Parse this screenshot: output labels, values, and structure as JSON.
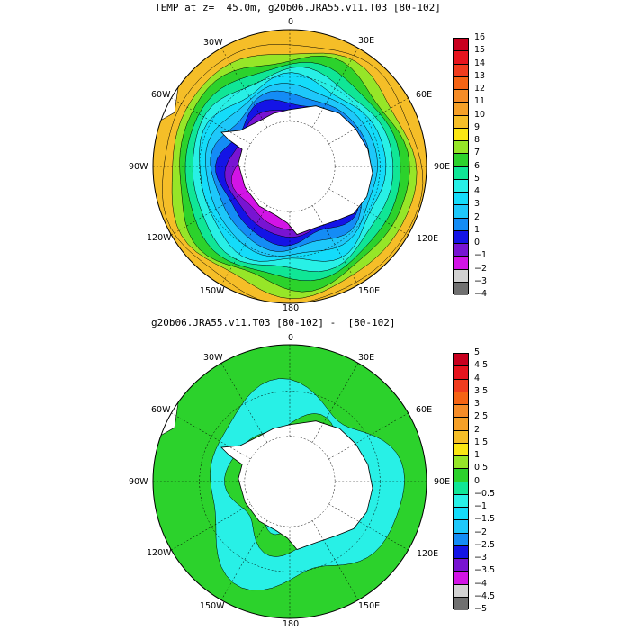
{
  "panels": [
    {
      "title": "TEMP at z=  45.0m, g20b06.JRA55.v11.T03 [80-102]",
      "lon_labels": [
        "0",
        "30E",
        "60E",
        "90E",
        "120E",
        "150E",
        "180",
        "150W",
        "120W",
        "90W",
        "60W",
        "30W"
      ],
      "colorbar": {
        "labels": [
          "16",
          "15",
          "14",
          "13",
          "12",
          "11",
          "10",
          "9",
          "8",
          "7",
          "6",
          "5",
          "4",
          "3",
          "2",
          "1",
          "0",
          "−1",
          "−2",
          "−3",
          "−4"
        ],
        "colors": [
          "#c8001e",
          "#e6141e",
          "#f03c1e",
          "#f56414",
          "#f58c28",
          "#f5a028",
          "#f5be28",
          "#fae614",
          "#96e628",
          "#2cd22c",
          "#10e696",
          "#28f0e6",
          "#14dcfa",
          "#1ec8fa",
          "#148cf5",
          "#1414e6",
          "#7814d2",
          "#d214e6",
          "#d2d2d2",
          "#707070"
        ]
      },
      "map_rings": [
        "#f5be28",
        "#96e628",
        "#2cd22c",
        "#10e696",
        "#28f0e6",
        "#14dcfa",
        "#1ec8fa",
        "#148cf5",
        "#1414e6",
        "#7814d2",
        "#d214e6"
      ]
    },
    {
      "title": "g20b06.JRA55.v11.T03 [80-102] -  [80-102]",
      "lon_labels": [
        "0",
        "30E",
        "60E",
        "90E",
        "120E",
        "150E",
        "180",
        "150W",
        "120W",
        "90W",
        "60W",
        "30W"
      ],
      "colorbar": {
        "labels": [
          "5",
          "4.5",
          "4",
          "3.5",
          "3",
          "2.5",
          "2",
          "1.5",
          "1",
          "0.5",
          "0",
          "−0.5",
          "−1",
          "−1.5",
          "−2",
          "−2.5",
          "−3",
          "−3.5",
          "−4",
          "−4.5",
          "−5"
        ],
        "colors": [
          "#c8001e",
          "#e6141e",
          "#f03c1e",
          "#f56414",
          "#f58c28",
          "#f5a028",
          "#f5be28",
          "#fae614",
          "#96e628",
          "#2cd22c",
          "#10e696",
          "#28f0e6",
          "#14dcfa",
          "#1ec8fa",
          "#148cf5",
          "#1414e6",
          "#7814d2",
          "#d214e6",
          "#d2d2d2",
          "#707070"
        ]
      },
      "map_rings": [
        "#2cd22c",
        "#28f0e6",
        "#2cd22c",
        "#28f0e6"
      ]
    }
  ]
}
